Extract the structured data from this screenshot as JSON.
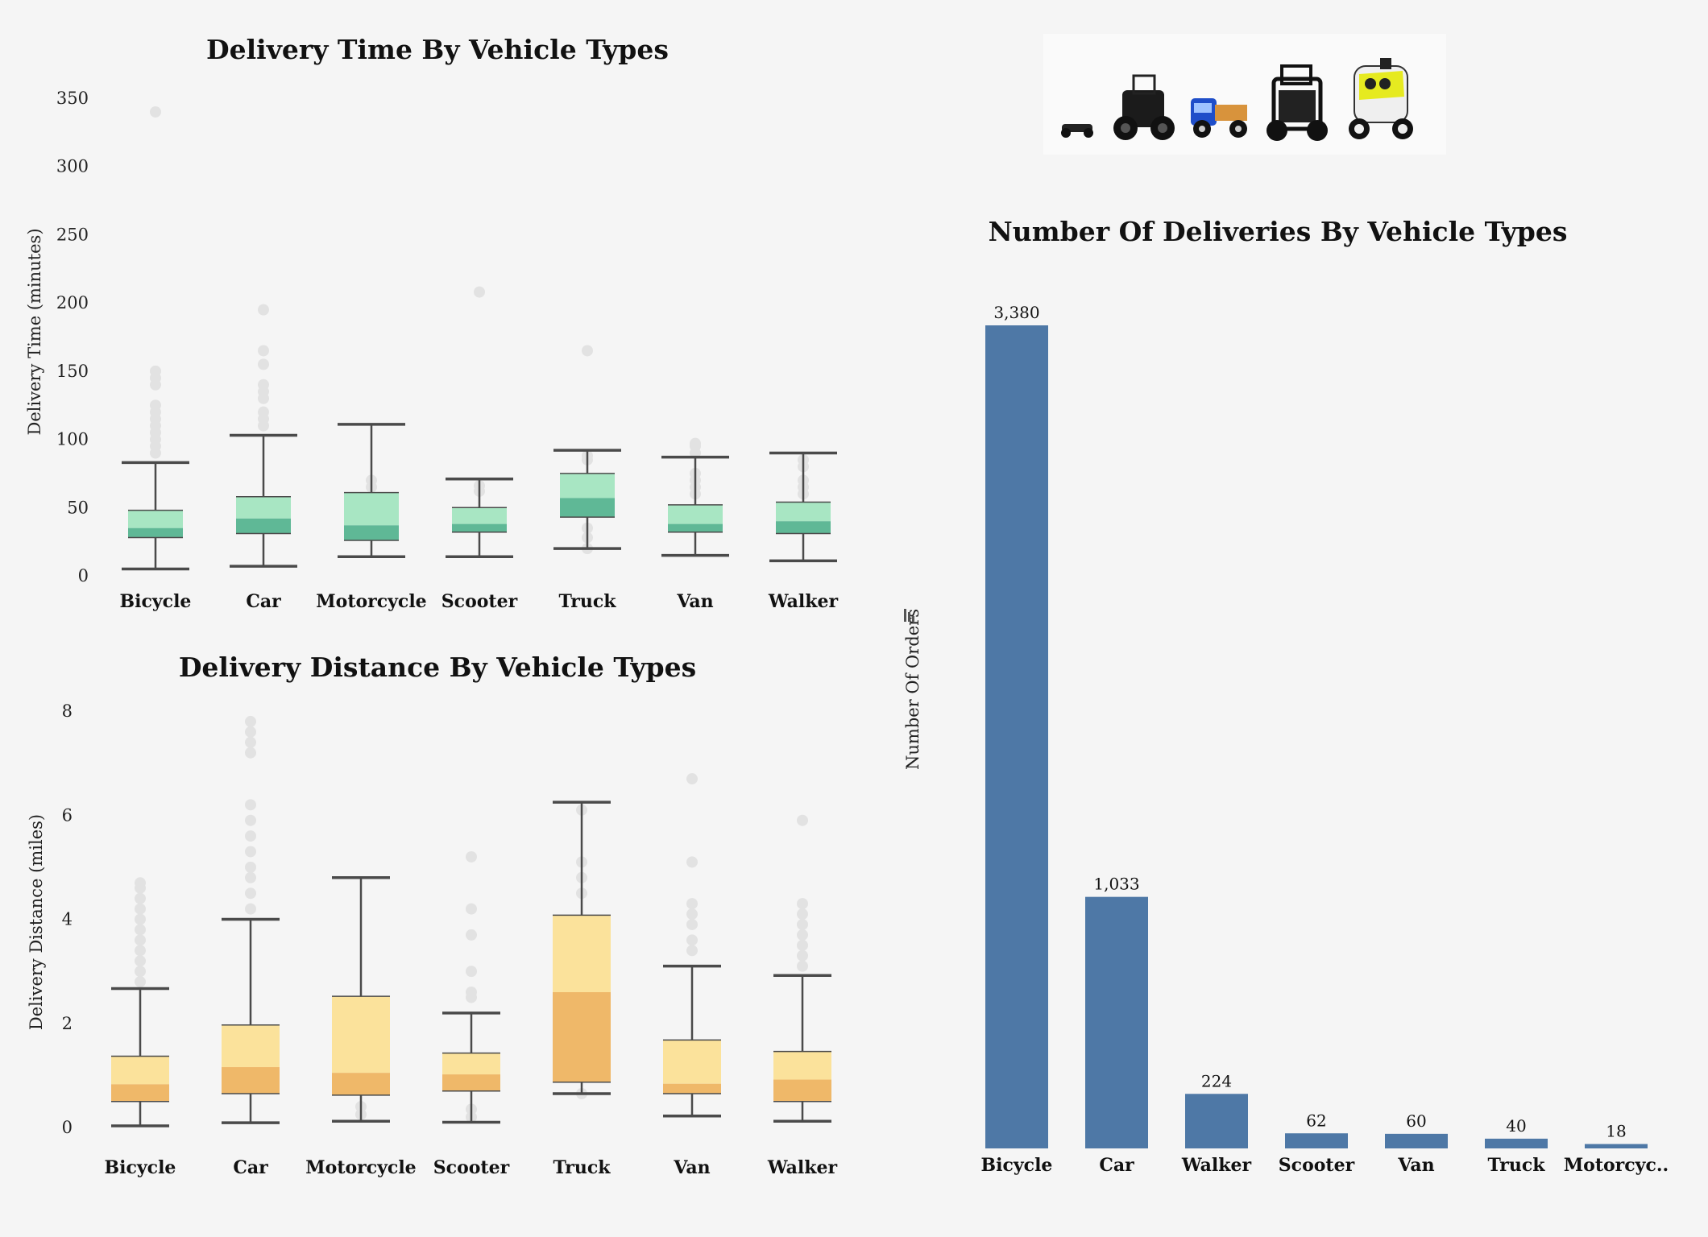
{
  "colors": {
    "background": "#f5f5f5",
    "time_box_light": "#a8e6c3",
    "time_box_dark": "#5fb896",
    "distance_box_light": "#fbe29b",
    "distance_box_dark": "#efb869",
    "bar": "#4e78a6",
    "outlier": "#e2e2e2",
    "whisker": "#4a4a4a"
  },
  "image_strip": {
    "icons": [
      "small-robot-icon",
      "delivery-robot-icon",
      "toy-truck-icon",
      "cage-robot-icon",
      "yellow-robot-icon"
    ]
  },
  "chart_data": [
    {
      "type": "box",
      "title": "Delivery Time By Vehicle Types",
      "ylabel": "Delivery Time (minutes)",
      "xlabel": "",
      "ylim": [
        0,
        350
      ],
      "yticks": [
        0,
        50,
        100,
        150,
        200,
        250,
        300,
        350
      ],
      "yticks_labels": [
        "0",
        "50",
        "100",
        "150",
        "200",
        "250",
        "300",
        "350"
      ],
      "grid": false,
      "categories": [
        "Bicycle",
        "Car",
        "Motorcycle",
        "Scooter",
        "Truck",
        "Van",
        "Walker"
      ],
      "boxes": [
        {
          "min": 5,
          "q1": 28,
          "median": 35,
          "q3": 48,
          "max": 83,
          "outliers": [
            90,
            95,
            100,
            105,
            110,
            115,
            120,
            125,
            140,
            145,
            150,
            340
          ]
        },
        {
          "min": 7,
          "q1": 31,
          "median": 42,
          "q3": 58,
          "max": 103,
          "outliers": [
            110,
            115,
            120,
            130,
            135,
            140,
            155,
            165,
            195
          ]
        },
        {
          "min": 14,
          "q1": 26,
          "median": 37,
          "q3": 61,
          "max": 111,
          "outliers": [
            45,
            55,
            65,
            70
          ]
        },
        {
          "min": 14,
          "q1": 32,
          "median": 38,
          "q3": 50,
          "max": 71,
          "outliers": [
            62,
            66,
            208
          ]
        },
        {
          "min": 20,
          "q1": 43,
          "median": 57,
          "q3": 75,
          "max": 92,
          "outliers": [
            20,
            28,
            35,
            85,
            88,
            165
          ]
        },
        {
          "min": 15,
          "q1": 32,
          "median": 38,
          "q3": 52,
          "max": 87,
          "outliers": [
            60,
            65,
            70,
            75,
            90,
            95,
            97
          ]
        },
        {
          "min": 11,
          "q1": 31,
          "median": 40,
          "q3": 54,
          "max": 90,
          "outliers": [
            60,
            65,
            70,
            80,
            85
          ]
        }
      ]
    },
    {
      "type": "box",
      "title": "Delivery Distance By Vehicle Types",
      "ylabel": "Delivery Distance (miles)",
      "xlabel": "",
      "ylim": [
        0,
        8
      ],
      "yticks": [
        0,
        2,
        4,
        6,
        8
      ],
      "yticks_labels": [
        "0",
        "2",
        "4",
        "6",
        "8"
      ],
      "grid": false,
      "categories": [
        "Bicycle",
        "Car",
        "Motorcycle",
        "Scooter",
        "Truck",
        "Van",
        "Walker"
      ],
      "boxes": [
        {
          "min": 0.03,
          "q1": 0.5,
          "median": 0.83,
          "q3": 1.37,
          "max": 2.67,
          "outliers": [
            2.8,
            3.0,
            3.2,
            3.4,
            3.6,
            3.8,
            4.0,
            4.2,
            4.4,
            4.6,
            4.7
          ]
        },
        {
          "min": 0.09,
          "q1": 0.65,
          "median": 1.16,
          "q3": 1.97,
          "max": 4.0,
          "outliers": [
            4.2,
            4.5,
            4.8,
            5.0,
            5.3,
            5.6,
            5.9,
            6.2,
            7.2,
            7.4,
            7.6,
            7.8
          ]
        },
        {
          "min": 0.12,
          "q1": 0.62,
          "median": 1.05,
          "q3": 2.52,
          "max": 4.8,
          "outliers": [
            0.25,
            0.4
          ]
        },
        {
          "min": 0.1,
          "q1": 0.7,
          "median": 1.02,
          "q3": 1.43,
          "max": 2.2,
          "outliers": [
            0.2,
            0.35,
            2.5,
            2.6,
            3.0,
            3.7,
            4.2,
            5.2
          ]
        },
        {
          "min": 0.65,
          "q1": 0.87,
          "median": 2.6,
          "q3": 4.08,
          "max": 6.25,
          "outliers": [
            0.65,
            4.5,
            4.8,
            5.1,
            6.1
          ]
        },
        {
          "min": 0.22,
          "q1": 0.65,
          "median": 0.84,
          "q3": 1.68,
          "max": 3.1,
          "outliers": [
            3.4,
            3.6,
            3.9,
            4.1,
            4.3,
            5.1,
            6.7
          ]
        },
        {
          "min": 0.12,
          "q1": 0.5,
          "median": 0.92,
          "q3": 1.46,
          "max": 2.92,
          "outliers": [
            3.1,
            3.3,
            3.5,
            3.7,
            3.9,
            4.1,
            4.3,
            5.9
          ]
        }
      ]
    },
    {
      "type": "bar",
      "title": "Number Of Deliveries By Vehicle Types",
      "ylabel": "Number Of Orders",
      "xlabel": "",
      "grid": false,
      "categories": [
        "Bicycle",
        "Car",
        "Walker",
        "Scooter",
        "Van",
        "Truck",
        "Motorcyc.."
      ],
      "values": [
        3380,
        1033,
        224,
        62,
        60,
        40,
        18
      ],
      "value_labels": [
        "3,380",
        "1,033",
        "224",
        "62",
        "60",
        "40",
        "18"
      ],
      "ylim": [
        0,
        3380
      ]
    }
  ]
}
